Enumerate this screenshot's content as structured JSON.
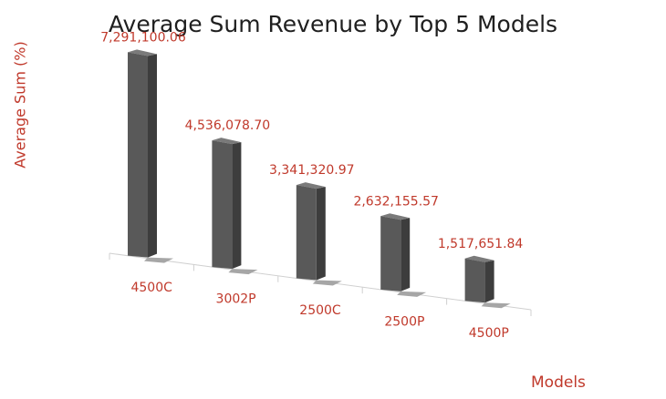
{
  "chart_data": {
    "type": "bar",
    "title": "Average Sum Revenue by Top 5 Models",
    "xlabel": "Models",
    "ylabel": "Average Sum (%)",
    "categories": [
      "4500C",
      "3002P",
      "2500C",
      "2500P",
      "4500P"
    ],
    "values": [
      7291100.06,
      4536078.7,
      3341320.97,
      2632155.57,
      1517651.84
    ],
    "data_labels": [
      "7,291,100.06",
      "4,536,078.70",
      "3,341,320.97",
      "2,632,155.57",
      "1,517,651.84"
    ],
    "ylim": [
      0,
      8000000
    ],
    "grid": false,
    "legend": "none",
    "style": "3d-column",
    "colors": {
      "bar_front": "#595959",
      "bar_side": "#3d3d3d",
      "bar_top": "#7a7a7a",
      "shadow": "#a6a6a6",
      "label": "#c0392b",
      "title": "#1f1f1f",
      "axis": "#d0d0d0"
    }
  }
}
